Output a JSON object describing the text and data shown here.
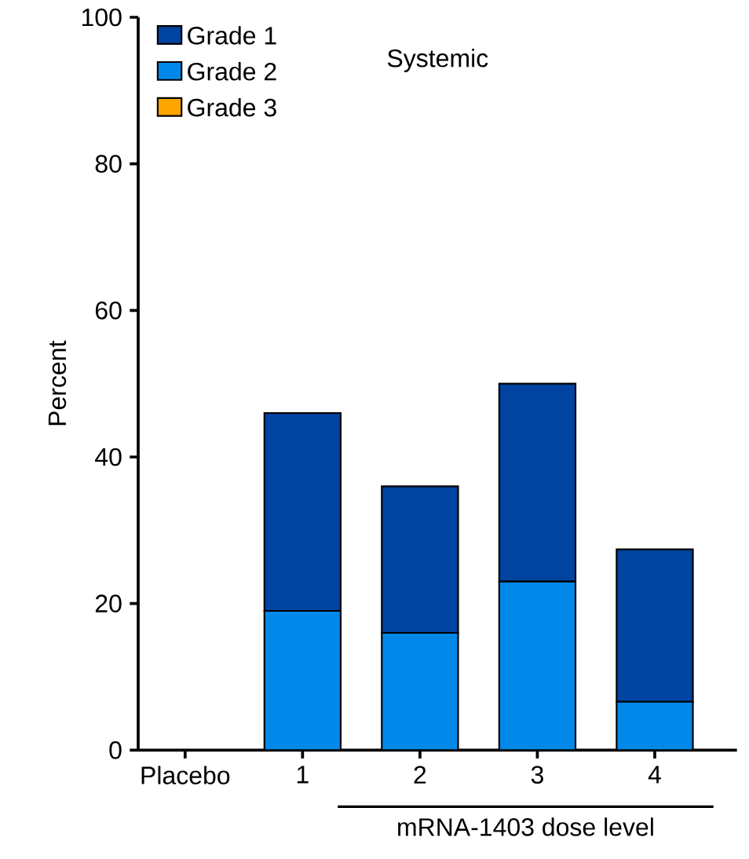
{
  "chart_data": {
    "type": "bar",
    "stacked": true,
    "title": "Systemic",
    "ylabel": "Percent",
    "xlabel": "mRNA-1403 dose level",
    "categories": [
      "Placebo",
      "1",
      "2",
      "3",
      "4"
    ],
    "series": [
      {
        "name": "Grade 3",
        "color": "#ffa500",
        "values": [
          0,
          0,
          0,
          0,
          0
        ]
      },
      {
        "name": "Grade 2",
        "color": "#0288e8",
        "values": [
          0,
          19,
          16,
          23,
          6.6
        ]
      },
      {
        "name": "Grade 1",
        "color": "#0043a0",
        "values": [
          0,
          27,
          20,
          27,
          20.8
        ]
      }
    ],
    "ylim": [
      0,
      100
    ],
    "yticks": [
      0,
      20,
      40,
      60,
      80,
      100
    ],
    "grid": false,
    "legend": "top left"
  }
}
